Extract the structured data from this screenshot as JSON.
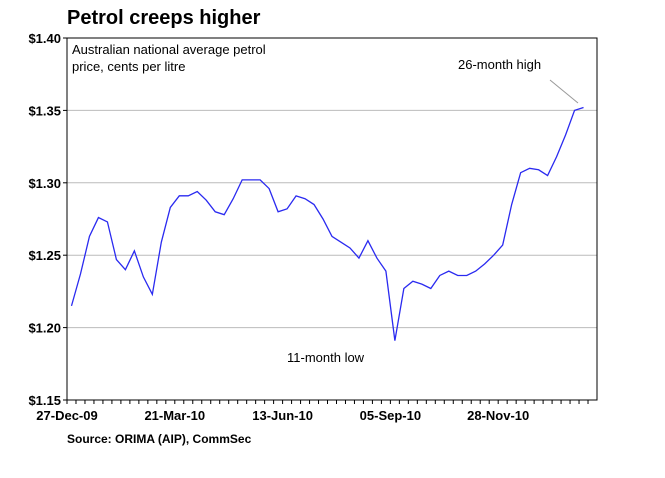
{
  "chart_data": {
    "type": "line",
    "title": "Petrol creeps higher",
    "subtitle": [
      "Australian national average petrol",
      "price, cents per litre"
    ],
    "source": "Source: ORIMA (AIP), CommSec",
    "annotations": [
      "26-month high",
      "11-month low"
    ],
    "categories": [
      "27-Dec-09",
      null,
      null,
      null,
      null,
      null,
      null,
      null,
      null,
      null,
      null,
      null,
      "21-Mar-10",
      null,
      null,
      null,
      null,
      null,
      null,
      null,
      null,
      null,
      null,
      null,
      "13-Jun-10",
      null,
      null,
      null,
      null,
      null,
      null,
      null,
      null,
      null,
      null,
      null,
      "05-Sep-10",
      null,
      null,
      null,
      null,
      null,
      null,
      null,
      null,
      null,
      null,
      null,
      "28-Nov-10",
      null,
      null,
      null,
      null,
      null,
      null,
      null,
      null,
      null,
      null
    ],
    "values": [
      1.215,
      1.237,
      1.263,
      1.276,
      1.273,
      1.247,
      1.24,
      1.253,
      1.235,
      1.223,
      1.259,
      1.283,
      1.291,
      1.291,
      1.294,
      1.288,
      1.28,
      1.278,
      1.289,
      1.302,
      1.302,
      1.302,
      1.296,
      1.28,
      1.282,
      1.291,
      1.289,
      1.285,
      1.275,
      1.263,
      1.259,
      1.255,
      1.248,
      1.26,
      1.248,
      1.239,
      1.191,
      1.227,
      1.232,
      1.23,
      1.227,
      1.236,
      1.239,
      1.236,
      1.236,
      1.239,
      1.244,
      1.25,
      1.257,
      1.285,
      1.307,
      1.31,
      1.309,
      1.305,
      1.318,
      1.333,
      1.35,
      1.352,
      null
    ],
    "color": "#2a2af0",
    "ylim": [
      1.15,
      1.4
    ],
    "yticks": [
      {
        "value": 1.15,
        "label": "$1.15"
      },
      {
        "value": 1.2,
        "label": "$1.20"
      },
      {
        "value": 1.25,
        "label": "$1.25"
      },
      {
        "value": 1.3,
        "label": "$1.30"
      },
      {
        "value": 1.35,
        "label": "$1.35"
      },
      {
        "value": 1.4,
        "label": "$1.40"
      }
    ],
    "grid": true
  }
}
